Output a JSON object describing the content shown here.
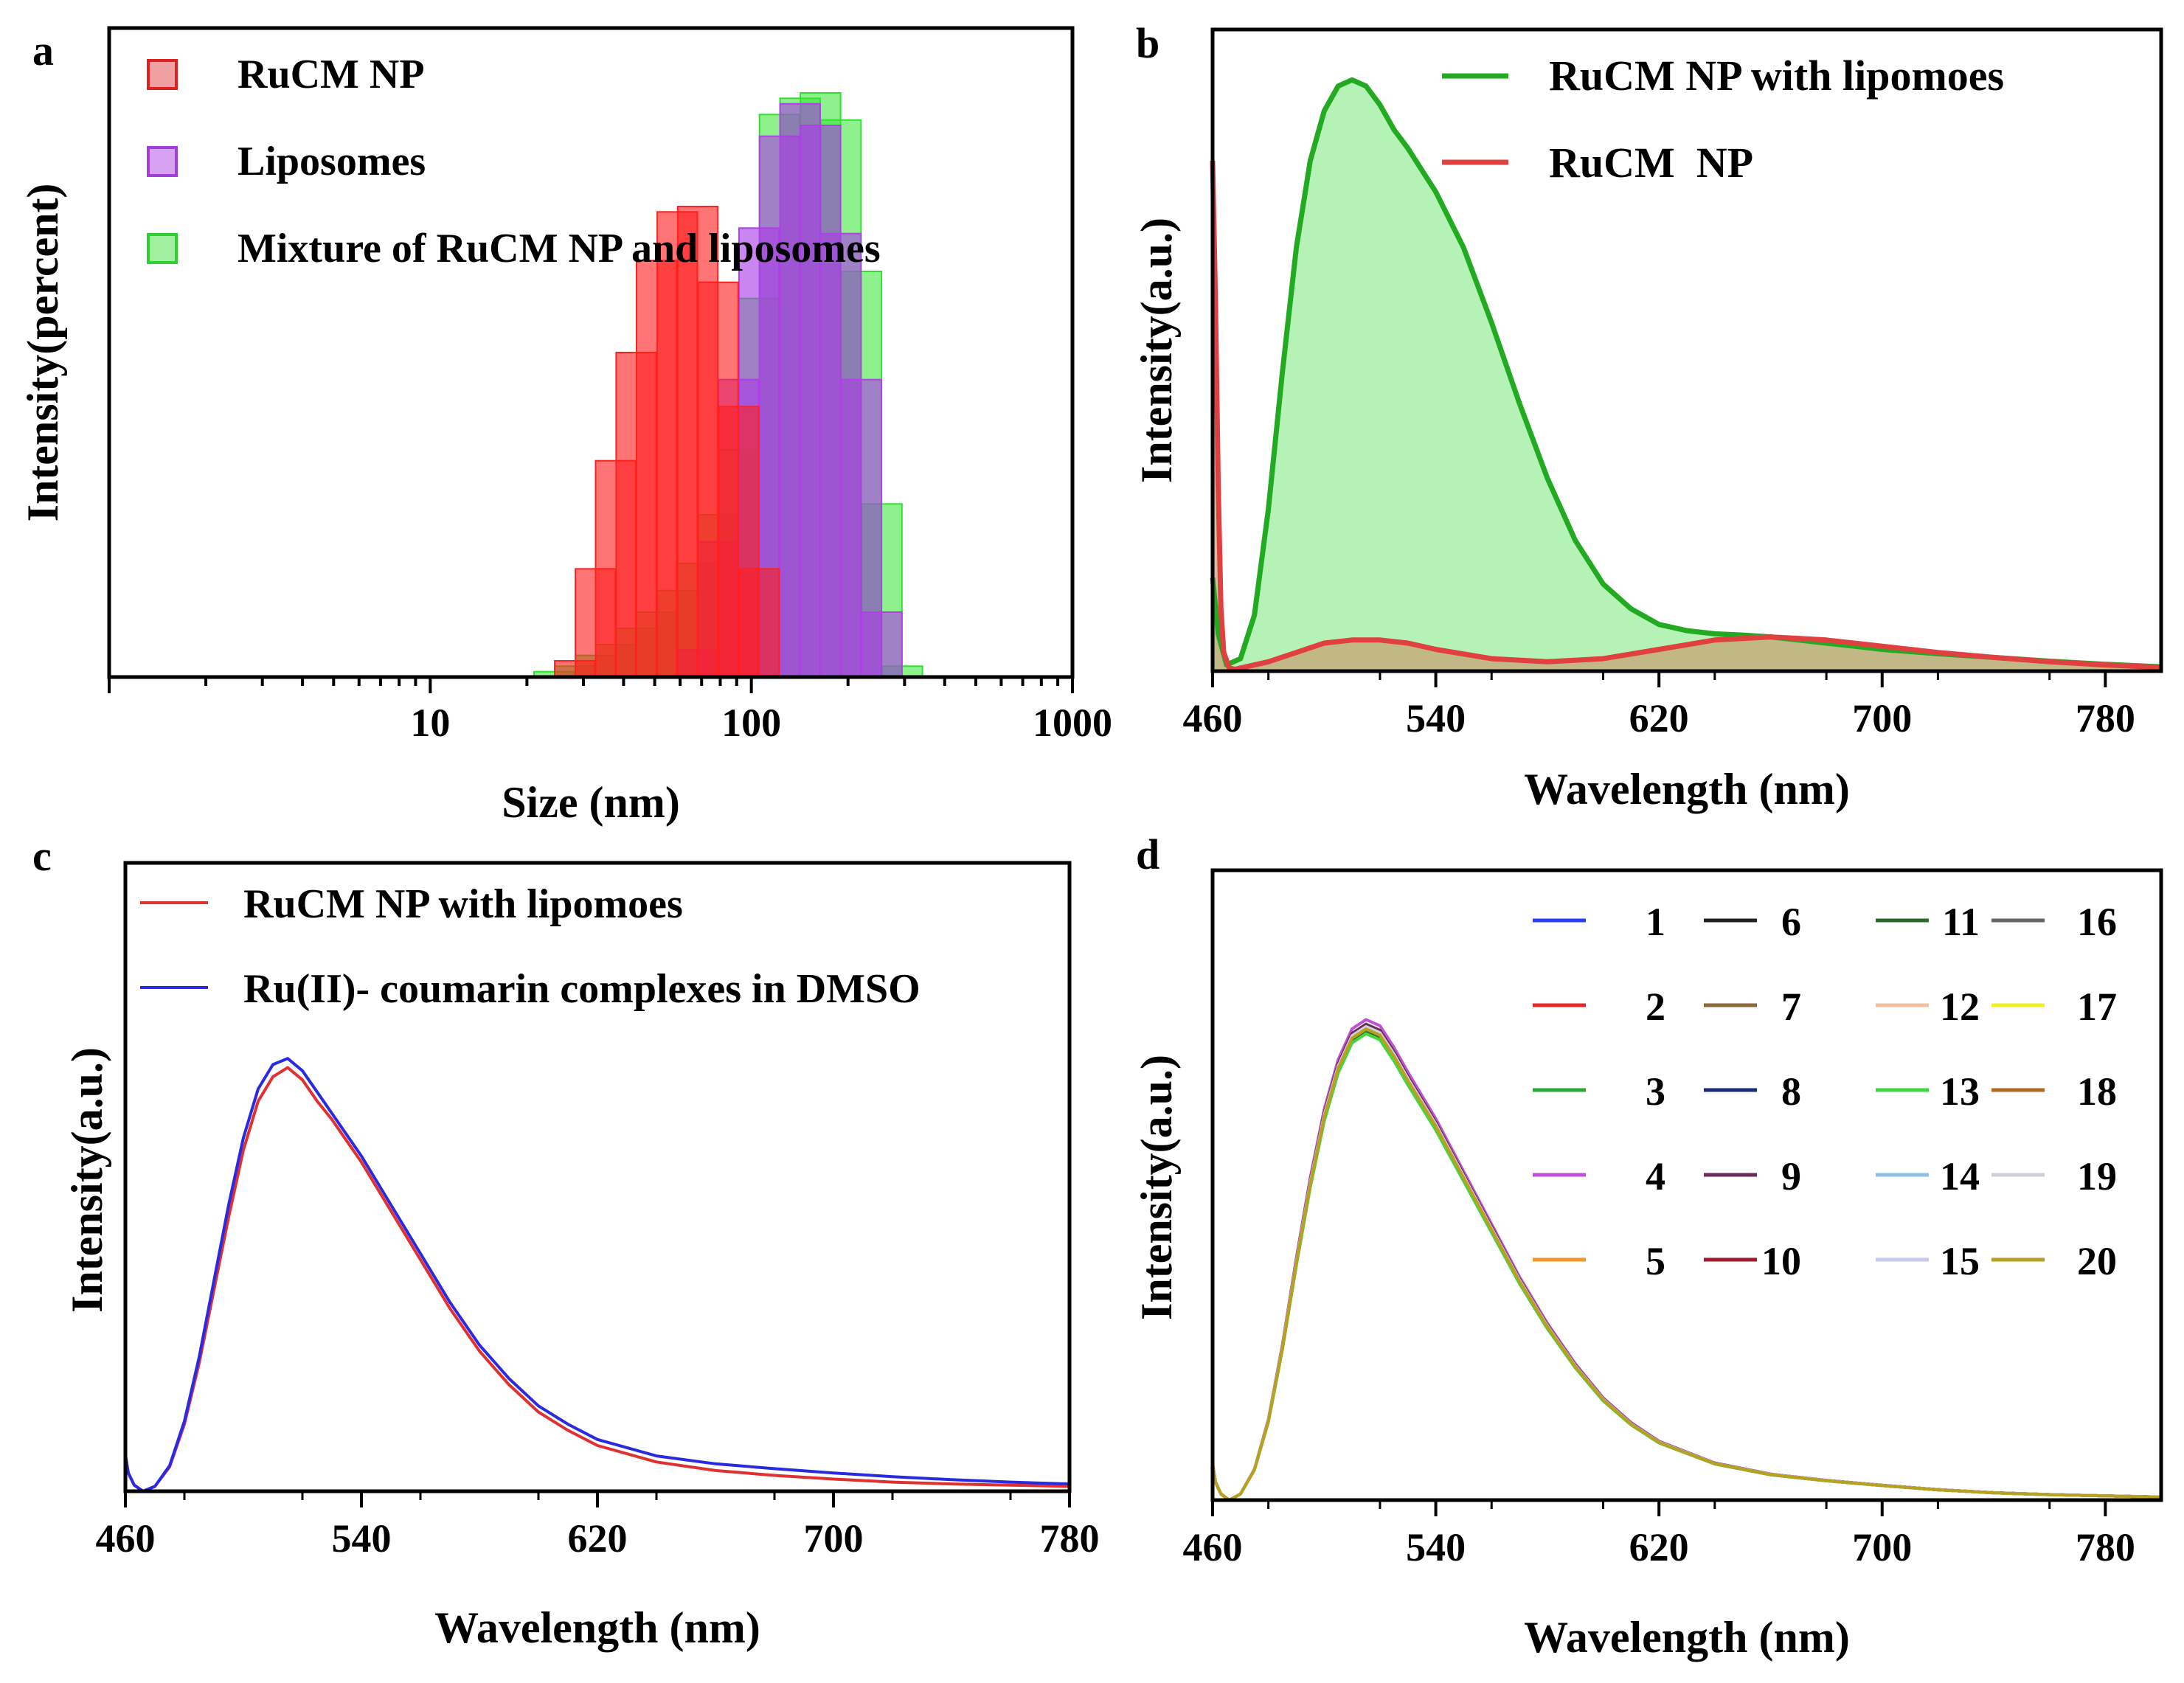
{
  "chart_data": [
    {
      "panel": "a",
      "type": "bar",
      "xscale": "log",
      "xlabel": "Size (nm)",
      "ylabel": "Intensity(percent)",
      "xlim": [
        1,
        1000
      ],
      "ylim": [
        0,
        12
      ],
      "xticks": [
        10,
        100,
        1000
      ],
      "xtick_labels": [
        "10",
        "100",
        "1000"
      ],
      "legend_position": "top-left",
      "series": [
        {
          "name": "RuCM NP",
          "color": "#ff2020",
          "x": [
            28.2,
            32.7,
            37.8,
            43.8,
            50.7,
            58.8,
            68.1,
            78.8,
            91.3,
            105.7
          ],
          "values": [
            0.3,
            2.0,
            4.0,
            6.0,
            7.7,
            8.6,
            8.7,
            7.3,
            5.0,
            2.0
          ]
        },
        {
          "name": "Liposomes",
          "color": "#b040e8",
          "x": [
            68.1,
            78.8,
            91.3,
            105.7,
            122.4,
            141.8,
            164.2,
            190.1,
            220.2,
            255.0
          ],
          "values": [
            0.5,
            2.5,
            5.5,
            8.3,
            10.0,
            10.6,
            10.2,
            8.2,
            5.5,
            1.2
          ]
        },
        {
          "name": "Mixture of RuCM NP and liposomes",
          "color": "#30e030",
          "x": [
            24.3,
            28.2,
            32.7,
            37.8,
            43.8,
            50.7,
            58.8,
            68.1,
            78.8,
            91.3,
            105.7,
            122.4,
            141.8,
            164.2,
            190.1,
            220.2,
            255.0,
            295.3
          ],
          "values": [
            0.1,
            0.2,
            0.4,
            0.6,
            0.9,
            1.2,
            1.6,
            2.1,
            3.0,
            4.2,
            7.0,
            10.4,
            10.7,
            10.8,
            10.3,
            7.5,
            3.2,
            0.2
          ]
        }
      ]
    },
    {
      "panel": "b",
      "type": "area",
      "xlabel": "Wavelength (nm)",
      "ylabel": "Intensity(a.u.)",
      "xlim": [
        460,
        800
      ],
      "ylim": [
        0,
        100
      ],
      "xticks": [
        460,
        540,
        620,
        700,
        780
      ],
      "legend_position": "top-right",
      "series": [
        {
          "name": "RuCM NP with lipomoes",
          "color": "#22aa22",
          "fill": "#a8f0a8",
          "x": [
            460,
            462,
            465,
            470,
            475,
            480,
            485,
            490,
            495,
            500,
            505,
            510,
            515,
            520,
            525,
            530,
            540,
            550,
            560,
            570,
            580,
            590,
            600,
            610,
            620,
            630,
            640,
            650,
            660,
            670,
            680,
            690,
            700,
            720,
            740,
            760,
            780,
            800
          ],
          "values": [
            15,
            6,
            1,
            2,
            9,
            26,
            48,
            68,
            82,
            90,
            94,
            95,
            94,
            91,
            87,
            84,
            77,
            68,
            56,
            43,
            31,
            21,
            14,
            10,
            7.5,
            6.5,
            6,
            5.8,
            5.5,
            5,
            4.5,
            4,
            3.5,
            2.8,
            2.2,
            1.6,
            1.1,
            0.7
          ]
        },
        {
          "name": "RuCM  NP",
          "color": "#e04040",
          "fill": "#c8a070",
          "x": [
            460,
            461,
            462,
            463,
            464,
            466,
            468,
            470,
            480,
            490,
            500,
            510,
            520,
            530,
            540,
            560,
            580,
            600,
            620,
            640,
            660,
            680,
            700,
            720,
            740,
            760,
            780,
            800
          ],
          "values": [
            82,
            60,
            30,
            10,
            3,
            0.5,
            0.3,
            0.5,
            1.5,
            3,
            4.5,
            5,
            5,
            4.5,
            3.5,
            2,
            1.5,
            2,
            3.5,
            5,
            5.5,
            5,
            4,
            3,
            2.2,
            1.5,
            1,
            0.6
          ]
        }
      ]
    },
    {
      "panel": "c",
      "type": "line",
      "xlabel": "Wavelength (nm)",
      "ylabel": "Intensity(a.u.)",
      "xlim": [
        460,
        780
      ],
      "ylim": [
        0,
        100
      ],
      "xticks": [
        460,
        540,
        620,
        700,
        780
      ],
      "legend_position": "top-left",
      "series": [
        {
          "name": "RuCM NP with lipomoes",
          "color": "#e03030",
          "x": [
            460,
            461,
            463,
            466,
            470,
            475,
            480,
            485,
            490,
            495,
            500,
            505,
            510,
            515,
            520,
            525,
            530,
            540,
            550,
            560,
            570,
            580,
            590,
            600,
            610,
            620,
            640,
            660,
            680,
            700,
            720,
            740,
            760,
            780
          ],
          "values": [
            6,
            3,
            1,
            0,
            0.8,
            4,
            11,
            21,
            33,
            45,
            56,
            64,
            68,
            69.5,
            67.5,
            64,
            61,
            54,
            46,
            38,
            30,
            23,
            17.5,
            13,
            10,
            7.5,
            4.8,
            3.4,
            2.6,
            2,
            1.5,
            1.2,
            1,
            0.8
          ]
        },
        {
          "name": "Ru(II)- coumarin complexes in DMSO",
          "color": "#2a2ae0",
          "x": [
            460,
            461,
            463,
            466,
            470,
            475,
            480,
            485,
            490,
            495,
            500,
            505,
            510,
            515,
            520,
            525,
            530,
            540,
            550,
            560,
            570,
            580,
            590,
            600,
            610,
            620,
            640,
            660,
            680,
            700,
            720,
            740,
            760,
            780
          ],
          "values": [
            6,
            3,
            1,
            0,
            0.8,
            4.2,
            11.5,
            22,
            34.5,
            47,
            58,
            66,
            70,
            71,
            69,
            65.5,
            62,
            55,
            47,
            39,
            31,
            24,
            18.5,
            14,
            11,
            8.5,
            5.8,
            4.5,
            3.7,
            3,
            2.4,
            1.9,
            1.5,
            1.2
          ]
        }
      ]
    },
    {
      "panel": "d",
      "type": "line",
      "xlabel": "Wavelength (nm)",
      "ylabel": "Intensity(a.u.)",
      "xlim": [
        460,
        800
      ],
      "ylim": [
        0,
        100
      ],
      "xticks": [
        460,
        540,
        620,
        700,
        780
      ],
      "legend_position": "top-right",
      "x": [
        460,
        461,
        463,
        466,
        470,
        475,
        480,
        485,
        490,
        495,
        500,
        505,
        510,
        515,
        520,
        525,
        530,
        540,
        550,
        560,
        570,
        580,
        590,
        600,
        610,
        620,
        640,
        660,
        680,
        700,
        720,
        740,
        760,
        780,
        800
      ],
      "base_profile": [
        6,
        3,
        1,
        0,
        1,
        5,
        13,
        25,
        39,
        52,
        63,
        71,
        76,
        77.5,
        76.5,
        73,
        69,
        61.5,
        53,
        44.5,
        36,
        28.5,
        22,
        16.5,
        12.5,
        9.5,
        6,
        4.2,
        3.2,
        2.4,
        1.7,
        1.2,
        0.9,
        0.7,
        0.5
      ],
      "series": [
        {
          "name": "1",
          "color": "#2a40ff",
          "scale": 1.0
        },
        {
          "name": "2",
          "color": "#e82828",
          "scale": 1.0
        },
        {
          "name": "3",
          "color": "#2aa83a",
          "scale": 0.985
        },
        {
          "name": "4",
          "color": "#c050d8",
          "scale": 1.015
        },
        {
          "name": "5",
          "color": "#f2962a",
          "scale": 0.99
        },
        {
          "name": "6",
          "color": "#222222",
          "scale": 1.005
        },
        {
          "name": "7",
          "color": "#8a6a3a",
          "scale": 0.995
        },
        {
          "name": "8",
          "color": "#1a2a7a",
          "scale": 1.0
        },
        {
          "name": "9",
          "color": "#6a2a5a",
          "scale": 1.005
        },
        {
          "name": "10",
          "color": "#a01a2a",
          "scale": 0.995
        },
        {
          "name": "11",
          "color": "#2a6a2a",
          "scale": 0.99
        },
        {
          "name": "12",
          "color": "#f0c0a0",
          "scale": 0.995
        },
        {
          "name": "13",
          "color": "#40d840",
          "scale": 0.985
        },
        {
          "name": "14",
          "color": "#90c0e8",
          "scale": 1.0
        },
        {
          "name": "15",
          "color": "#c8c8f0",
          "scale": 1.0
        },
        {
          "name": "16",
          "color": "#666666",
          "scale": 1.0
        },
        {
          "name": "17",
          "color": "#f0f020",
          "scale": 0.995
        },
        {
          "name": "18",
          "color": "#b06a20",
          "scale": 0.995
        },
        {
          "name": "19",
          "color": "#d0d0d8",
          "scale": 1.0
        },
        {
          "name": "20",
          "color": "#b8a020",
          "scale": 0.995
        }
      ]
    }
  ]
}
